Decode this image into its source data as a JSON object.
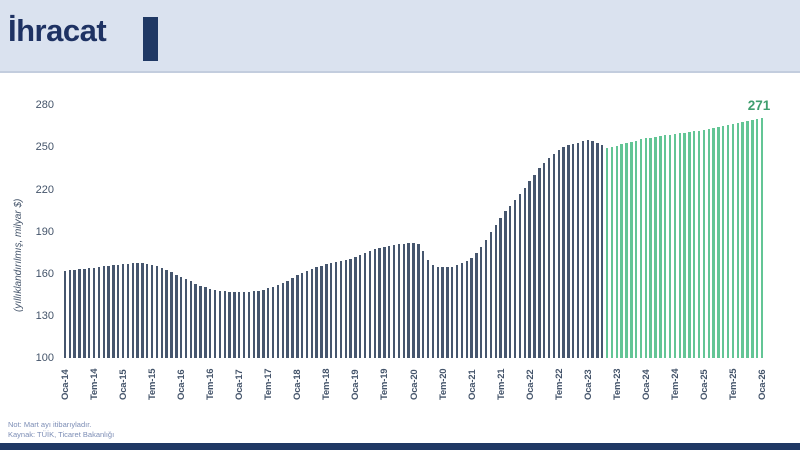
{
  "header": {
    "title": "İhracat",
    "background_color": "#dae2ef",
    "title_color": "#1e3263",
    "accent_color": "#1f3864"
  },
  "chart_data": {
    "type": "bar",
    "title": "İhracat",
    "ylabel": "(yıllıklandırılmış, milyar $)",
    "xlabel": "",
    "ylim": [
      100,
      280
    ],
    "yticks": [
      100,
      130,
      160,
      190,
      220,
      250,
      280
    ],
    "grid": false,
    "legend": "none",
    "x_frequency": "monthly",
    "xtick_labels": [
      "Oca-14",
      "Tem-14",
      "Oca-15",
      "Tem-15",
      "Oca-16",
      "Tem-16",
      "Oca-17",
      "Tem-17",
      "Oca-18",
      "Tem-18",
      "Oca-19",
      "Tem-19",
      "Oca-20",
      "Tem-20",
      "Oca-21",
      "Tem-21",
      "Oca-22",
      "Tem-22",
      "Oca-23",
      "Tem-23",
      "Oca-24",
      "Tem-24",
      "Oca-25",
      "Tem-25",
      "Oca-26"
    ],
    "xticks_every_n_bars": 6,
    "series": [
      {
        "color": "#46566e",
        "values": [
          162.0,
          162.4,
          162.8,
          163.2,
          163.6,
          164.0,
          164.4,
          164.8,
          165.2,
          165.6,
          166.0,
          166.4,
          166.8,
          167.1,
          167.4,
          167.5,
          167.4,
          167.0,
          166.2,
          165.2,
          164.0,
          162.6,
          161.0,
          159.4,
          157.8,
          156.2,
          154.6,
          153.0,
          151.6,
          150.4,
          149.4,
          148.6,
          148.0,
          147.6,
          147.3,
          147.1,
          147.0,
          147.0,
          147.2,
          147.5,
          148.0,
          148.7,
          149.6,
          150.7,
          152.0,
          153.5,
          155.2,
          157.0,
          158.8,
          160.5,
          162.0,
          163.4,
          164.6,
          165.7,
          166.7,
          167.6,
          168.4,
          169.1,
          169.7,
          170.3,
          172.0,
          173.5,
          175.0,
          176.3,
          177.5,
          178.5,
          179.3,
          180.0,
          180.5,
          181.0,
          181.4,
          181.7,
          182.0,
          181.0,
          176.0,
          170.0,
          166.5,
          165.0,
          164.5,
          164.5,
          165.0,
          166.0,
          167.5,
          169.0,
          171.0,
          174.5,
          179.0,
          184.0,
          189.5,
          195.0,
          200.0,
          204.5,
          208.5,
          212.5,
          216.5,
          221.0,
          226.0,
          230.5,
          235.0,
          239.0,
          242.5,
          245.5,
          248.0,
          250.0,
          251.5,
          252.5,
          253.5,
          254.5,
          255.0,
          254.5,
          253.5,
          252.0
        ]
      },
      {
        "color": "#63c595",
        "values": [
          249.5,
          250.4,
          251.3,
          252.2,
          253.0,
          253.9,
          254.8,
          255.7,
          256.5,
          257.0,
          257.5,
          258.0,
          258.5,
          259.0,
          259.5,
          260.0,
          260.5,
          261.0,
          261.5,
          262.0,
          262.5,
          263.2,
          263.9,
          264.6,
          265.3,
          266.0,
          266.7,
          267.4,
          268.2,
          269.0,
          269.8,
          270.5,
          271.0
        ]
      }
    ],
    "last_value_label": "271",
    "last_value_label_color": "#3f9e6e"
  },
  "footer": {
    "note": "Not: Mart ayı itibarıyladır.",
    "source": "Kaynak: TÜİK, Ticaret Bakanlığı"
  }
}
